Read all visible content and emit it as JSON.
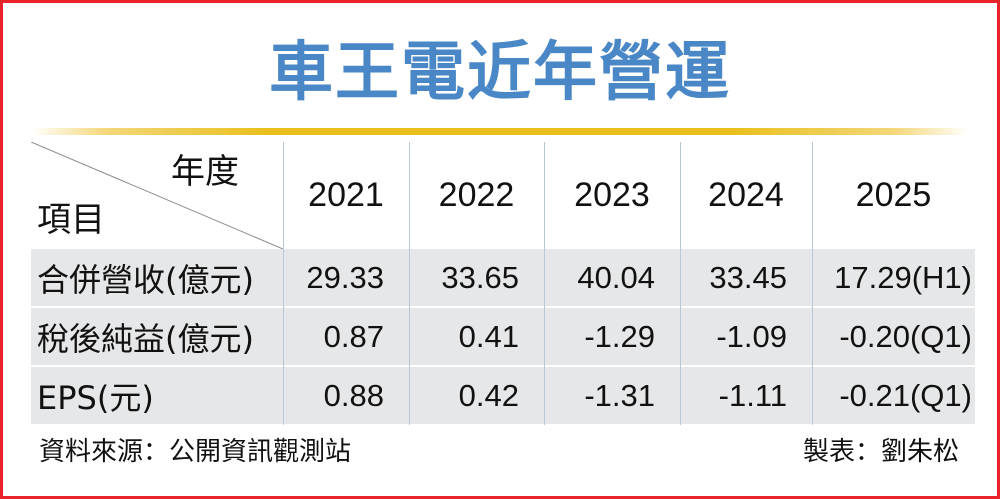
{
  "title": "車王電近年營運",
  "header": {
    "year_label": "年度",
    "item_label": "項目",
    "years": [
      "2021",
      "2022",
      "2023",
      "2024",
      "2025"
    ]
  },
  "rows": [
    {
      "label": "合併營收(億元)",
      "cells": [
        "29.33",
        "33.65",
        "40.04",
        "33.45",
        "17.29(H1)"
      ]
    },
    {
      "label": "稅後純益(億元)",
      "cells": [
        "0.87",
        "0.41",
        "-1.29",
        "-1.09",
        "-0.20(Q1)"
      ]
    },
    {
      "label": "EPS(元)",
      "cells": [
        "0.88",
        "0.42",
        "-1.31",
        "-1.11",
        "-0.21(Q1)"
      ]
    }
  ],
  "footer": {
    "source": "資料來源：公開資訊觀測站",
    "maker": "製表：劉朱松"
  },
  "colors": {
    "title": "#4a87c6",
    "border": "#e8242a",
    "accent_bar": "#e9c01d",
    "row_shade": "#e6e7e8"
  },
  "chart_data": {
    "type": "table",
    "title": "車王電近年營運",
    "columns": [
      "2021",
      "2022",
      "2023",
      "2024",
      "2025"
    ],
    "rows": [
      {
        "name": "合併營收(億元)",
        "values": [
          29.33,
          33.65,
          40.04,
          33.45,
          17.29
        ],
        "notes": [
          "",
          "",
          "",
          "",
          "H1"
        ]
      },
      {
        "name": "稅後純益(億元)",
        "values": [
          0.87,
          0.41,
          -1.29,
          -1.09,
          -0.2
        ],
        "notes": [
          "",
          "",
          "",
          "",
          "Q1"
        ]
      },
      {
        "name": "EPS(元)",
        "values": [
          0.88,
          0.42,
          -1.31,
          -1.11,
          -0.21
        ],
        "notes": [
          "",
          "",
          "",
          "",
          "Q1"
        ]
      }
    ]
  }
}
